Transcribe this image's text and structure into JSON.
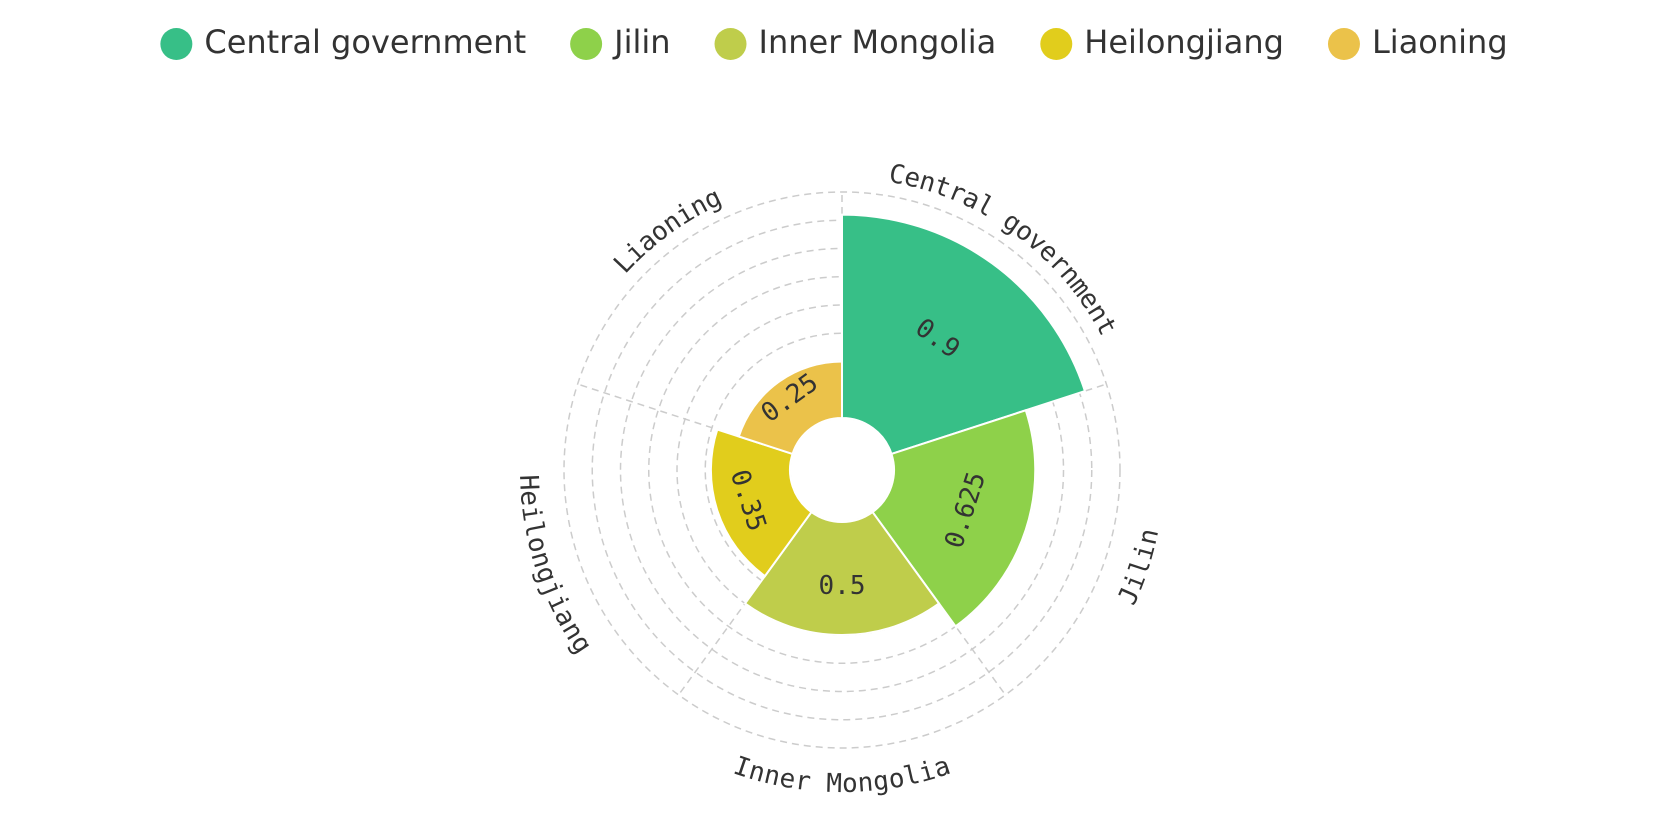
{
  "chart_data": {
    "type": "polar-bar",
    "categories": [
      "Central government",
      "Jilin",
      "Inner Mongolia",
      "Heilongjiang",
      "Liaoning"
    ],
    "values": [
      0.9,
      0.625,
      0.5,
      0.35,
      0.25
    ],
    "colors": [
      "#37bf87",
      "#8ed14a",
      "#bfcd4b",
      "#e1cd1c",
      "#ebc24a"
    ],
    "rlim": [
      0,
      1
    ],
    "rticks": [
      0,
      0.125,
      0.25,
      0.375,
      0.5,
      0.625,
      0.75,
      0.875,
      1
    ],
    "grid": true,
    "legend": "top"
  }
}
